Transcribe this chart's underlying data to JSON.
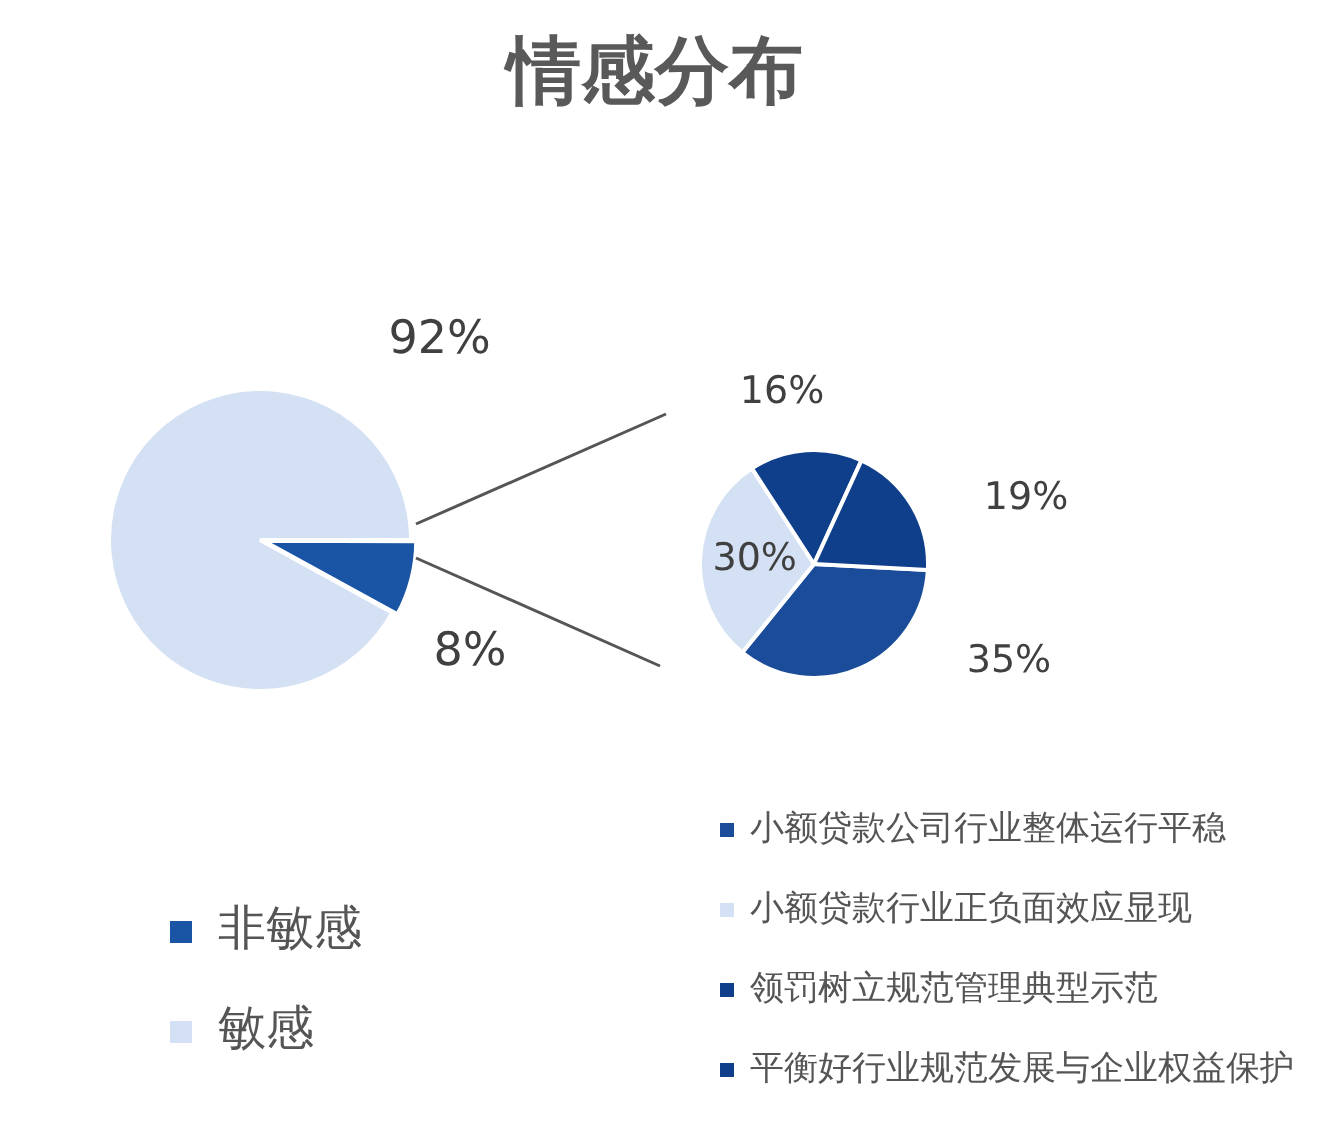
{
  "chart_data": [
    {
      "type": "pie",
      "title": "情感分布",
      "categories": [
        "非敏感",
        "敏感"
      ],
      "values": [
        8,
        92
      ],
      "colors": [
        "#1a55a5",
        "#d4e0f3"
      ],
      "value_labels": [
        "8%",
        "92%"
      ],
      "legend": "bottom"
    },
    {
      "type": "pie",
      "categories": [
        "小额贷款公司行业整体运行平稳",
        "小额贷款行业正负面效应显现",
        "领罚树立规范管理典型示范",
        "平衡好行业规范发展与企业权益保护"
      ],
      "values": [
        35,
        30,
        16,
        19
      ],
      "colors": [
        "#1a4c9a",
        "#d4e0f3",
        "#0f3e8a",
        "#0f3e8a"
      ],
      "value_labels": [
        "35%",
        "30%",
        "16%",
        "19%"
      ],
      "legend": "bottom right"
    }
  ]
}
